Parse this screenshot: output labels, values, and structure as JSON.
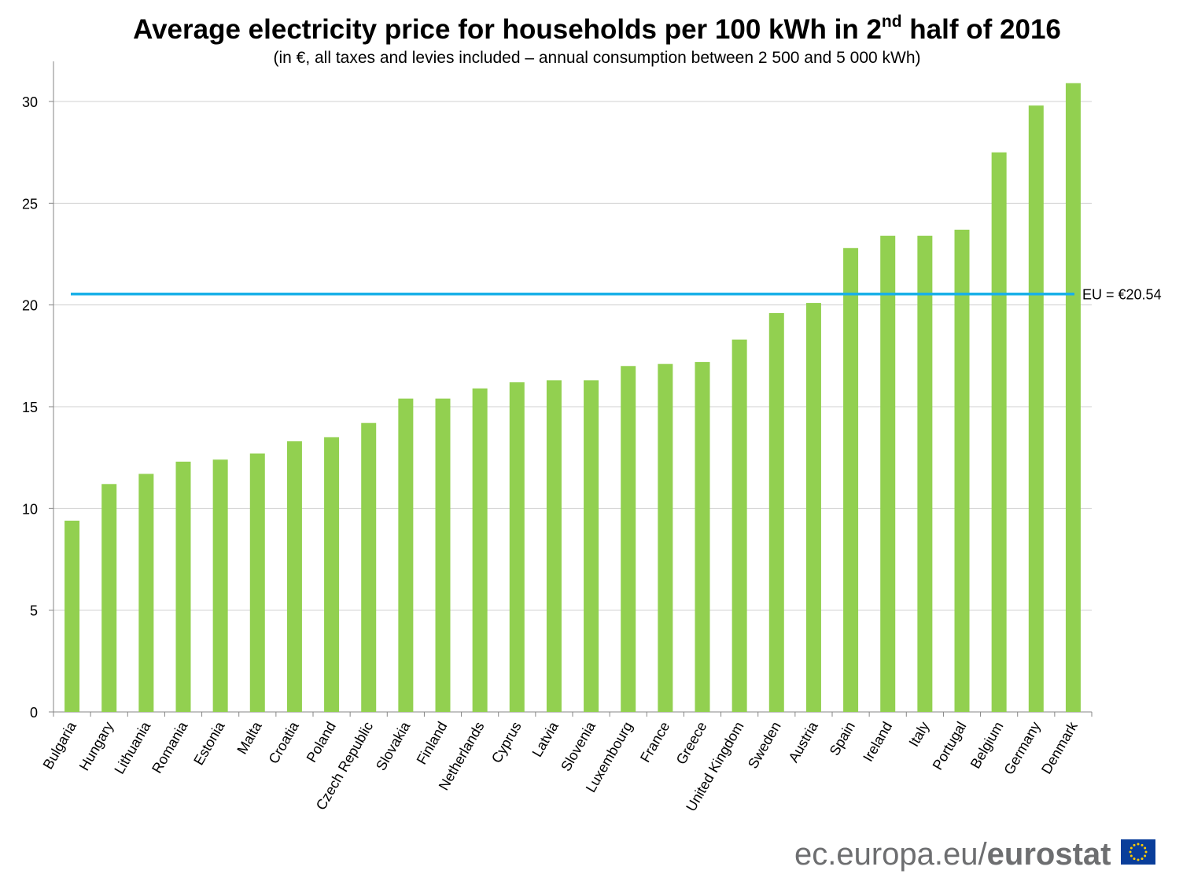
{
  "title": {
    "main": "Average electricity price for households per 100 kWh in 2",
    "superscript": "nd",
    "rest": " half of 2016"
  },
  "subtitle": "(in €, all taxes and levies included – annual consumption between 2 500 and 5 000 kWh)",
  "chart_data": {
    "type": "bar",
    "categories": [
      "Bulgaria",
      "Hungary",
      "Lithuania",
      "Romania",
      "Estonia",
      "Malta",
      "Croatia",
      "Poland",
      "Czech Republic",
      "Slovakia",
      "Finland",
      "Netherlands",
      "Cyprus",
      "Latvia",
      "Slovenia",
      "Luxembourg",
      "France",
      "Greece",
      "United Kingdom",
      "Sweden",
      "Austria",
      "Spain",
      "Ireland",
      "Italy",
      "Portugal",
      "Belgium",
      "Germany",
      "Denmark"
    ],
    "values": [
      9.4,
      11.2,
      11.7,
      12.3,
      12.4,
      12.7,
      13.3,
      13.5,
      14.2,
      15.4,
      15.4,
      15.9,
      16.2,
      16.3,
      16.3,
      17.0,
      17.1,
      17.2,
      18.3,
      19.6,
      20.1,
      22.8,
      23.4,
      23.4,
      23.7,
      27.5,
      29.8,
      30.9
    ],
    "yticks": [
      0,
      5,
      10,
      15,
      20,
      25,
      30
    ],
    "ylim": [
      0,
      32
    ],
    "title": "Average electricity price for households per 100 kWh in 2nd half of 2016",
    "xlabel": "",
    "ylabel": "",
    "grid": true,
    "reference_line": {
      "value": 20.54,
      "label": "EU = €20.54"
    },
    "colors": {
      "bar": "#92d050",
      "reference_line": "#19b0e8",
      "grid": "#d0d0d0",
      "axis": "#868686"
    }
  },
  "footer": {
    "site": "ec.europa.eu/",
    "brand": "eurostat"
  }
}
